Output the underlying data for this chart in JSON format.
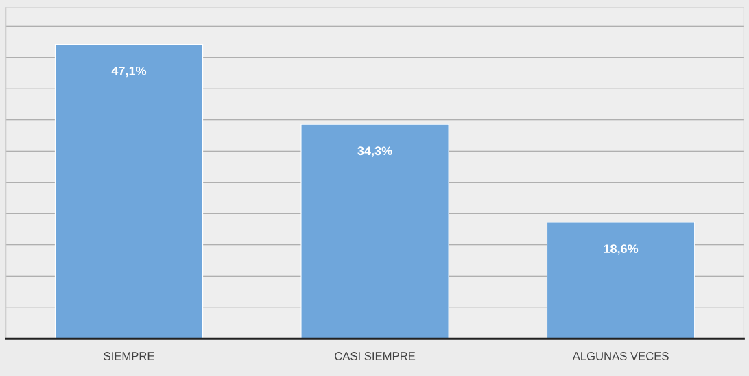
{
  "chart_data": {
    "type": "bar",
    "categories": [
      "SIEMPRE",
      "CASI SIEMPRE",
      "ALGUNAS VECES"
    ],
    "values": [
      47.1,
      34.3,
      18.6
    ],
    "value_labels": [
      "47,1%",
      "34,3%",
      "18,6%"
    ],
    "color": "#6fa6db",
    "ylim": [
      0,
      53
    ],
    "yticks": [
      {
        "value": 0,
        "label": null
      },
      {
        "value": 5,
        "label": null
      },
      {
        "value": 10,
        "label": null
      },
      {
        "value": 15,
        "label": null
      },
      {
        "value": 20,
        "label": null
      },
      {
        "value": 25,
        "label": null
      },
      {
        "value": 30,
        "label": null
      },
      {
        "value": 35,
        "label": null
      },
      {
        "value": 40,
        "label": null
      },
      {
        "value": 45,
        "label": null
      },
      {
        "value": 50,
        "label": null
      }
    ],
    "tick_labels": "x",
    "grid": "y"
  }
}
